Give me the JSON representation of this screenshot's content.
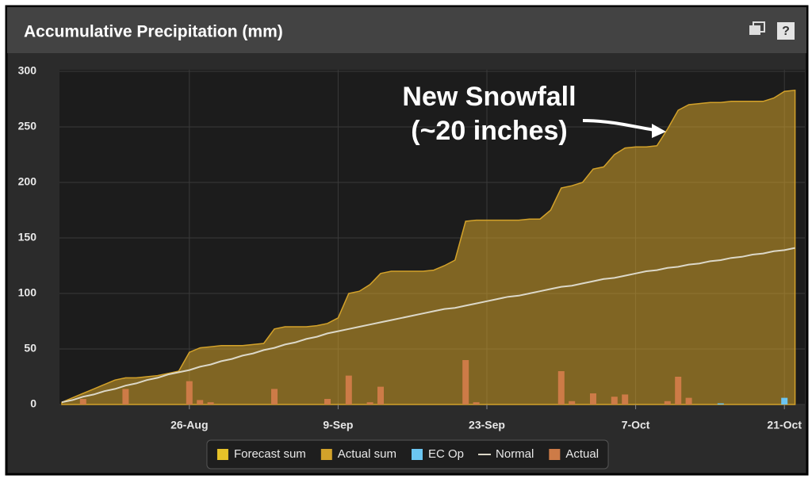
{
  "chart_data": {
    "type": "combo",
    "title": "Accumulative Precipitation (mm)",
    "help_icon": "?",
    "annotation": [
      "New Snowfall",
      "(~20 inches)"
    ],
    "categories": [
      null,
      null,
      null,
      null,
      null,
      null,
      null,
      null,
      null,
      null,
      null,
      null,
      "26-Aug",
      null,
      null,
      null,
      null,
      null,
      null,
      null,
      null,
      null,
      null,
      null,
      null,
      null,
      "9-Sep",
      null,
      null,
      null,
      null,
      null,
      null,
      null,
      null,
      null,
      null,
      null,
      null,
      null,
      "23-Sep",
      null,
      null,
      null,
      null,
      null,
      null,
      null,
      null,
      null,
      null,
      null,
      null,
      null,
      "7-Oct",
      null,
      null,
      null,
      null,
      null,
      null,
      null,
      null,
      null,
      null,
      null,
      null,
      null,
      "21-Oct",
      null
    ],
    "ylim": [
      0,
      300
    ],
    "yticks": [
      0,
      50,
      100,
      150,
      200,
      250,
      300
    ],
    "grid": true,
    "legend": "bottom",
    "series": [
      {
        "name": "Forecast sum",
        "kind": "area",
        "color": "#e6c229",
        "values": [
          null,
          null,
          null,
          null,
          null,
          null,
          null,
          null,
          null,
          null,
          null,
          null,
          null,
          null,
          null,
          null,
          null,
          null,
          null,
          null,
          null,
          null,
          null,
          null,
          null,
          null,
          null,
          null,
          null,
          null,
          null,
          null,
          null,
          null,
          null,
          null,
          null,
          null,
          null,
          null,
          null,
          null,
          null,
          null,
          null,
          null,
          null,
          null,
          null,
          null,
          null,
          null,
          null,
          null,
          null,
          null,
          null,
          null,
          null,
          null,
          null,
          null,
          null,
          null,
          null,
          null,
          null,
          null,
          null,
          null
        ]
      },
      {
        "name": "Actual sum",
        "kind": "area",
        "color": "#d3a22a",
        "values": [
          2,
          6,
          10,
          14,
          18,
          22,
          24,
          24,
          25,
          26,
          28,
          30,
          47,
          51,
          52,
          53,
          53,
          53,
          54,
          55,
          68,
          70,
          70,
          70,
          71,
          73,
          78,
          100,
          102,
          108,
          118,
          120,
          120,
          120,
          120,
          121,
          125,
          130,
          165,
          166,
          166,
          166,
          166,
          166,
          167,
          167,
          175,
          195,
          197,
          200,
          212,
          214,
          225,
          231,
          232,
          232,
          233,
          248,
          265,
          270,
          271,
          272,
          272,
          273,
          273,
          273,
          273,
          276,
          282,
          283
        ]
      },
      {
        "name": "EC Op",
        "kind": "bar",
        "color": "#6cc6f2",
        "values": [
          null,
          null,
          null,
          null,
          null,
          null,
          null,
          null,
          null,
          null,
          null,
          null,
          null,
          null,
          null,
          null,
          null,
          null,
          null,
          null,
          null,
          null,
          null,
          null,
          null,
          null,
          null,
          null,
          null,
          null,
          null,
          null,
          null,
          null,
          null,
          null,
          null,
          null,
          null,
          null,
          null,
          null,
          null,
          null,
          null,
          null,
          null,
          null,
          null,
          null,
          null,
          null,
          null,
          null,
          null,
          null,
          null,
          null,
          null,
          null,
          null,
          null,
          1,
          null,
          null,
          null,
          null,
          null,
          6,
          null
        ]
      },
      {
        "name": "Normal",
        "kind": "line",
        "color": "#dcd8c8",
        "values": [
          2,
          4,
          7,
          9,
          12,
          14,
          17,
          19,
          22,
          24,
          27,
          29,
          31,
          34,
          36,
          39,
          41,
          44,
          46,
          49,
          51,
          54,
          56,
          59,
          61,
          64,
          66,
          68,
          70,
          72,
          74,
          76,
          78,
          80,
          82,
          84,
          86,
          87,
          89,
          91,
          93,
          95,
          97,
          98,
          100,
          102,
          104,
          106,
          107,
          109,
          111,
          113,
          114,
          116,
          118,
          120,
          121,
          123,
          124,
          126,
          127,
          129,
          130,
          132,
          133,
          135,
          136,
          138,
          139,
          141
        ]
      },
      {
        "name": "Actual",
        "kind": "bar",
        "color": "#cd7b47",
        "values": [
          null,
          null,
          5,
          null,
          null,
          null,
          14,
          null,
          null,
          null,
          null,
          null,
          21,
          4,
          2,
          null,
          null,
          null,
          null,
          null,
          14,
          null,
          null,
          null,
          null,
          5,
          null,
          26,
          null,
          2,
          16,
          null,
          null,
          null,
          null,
          null,
          null,
          null,
          40,
          2,
          null,
          null,
          null,
          null,
          null,
          null,
          null,
          30,
          3,
          null,
          10,
          null,
          7,
          9,
          null,
          null,
          null,
          3,
          25,
          6,
          null,
          null,
          null,
          null,
          null,
          null,
          null,
          null,
          null,
          null
        ]
      }
    ]
  }
}
